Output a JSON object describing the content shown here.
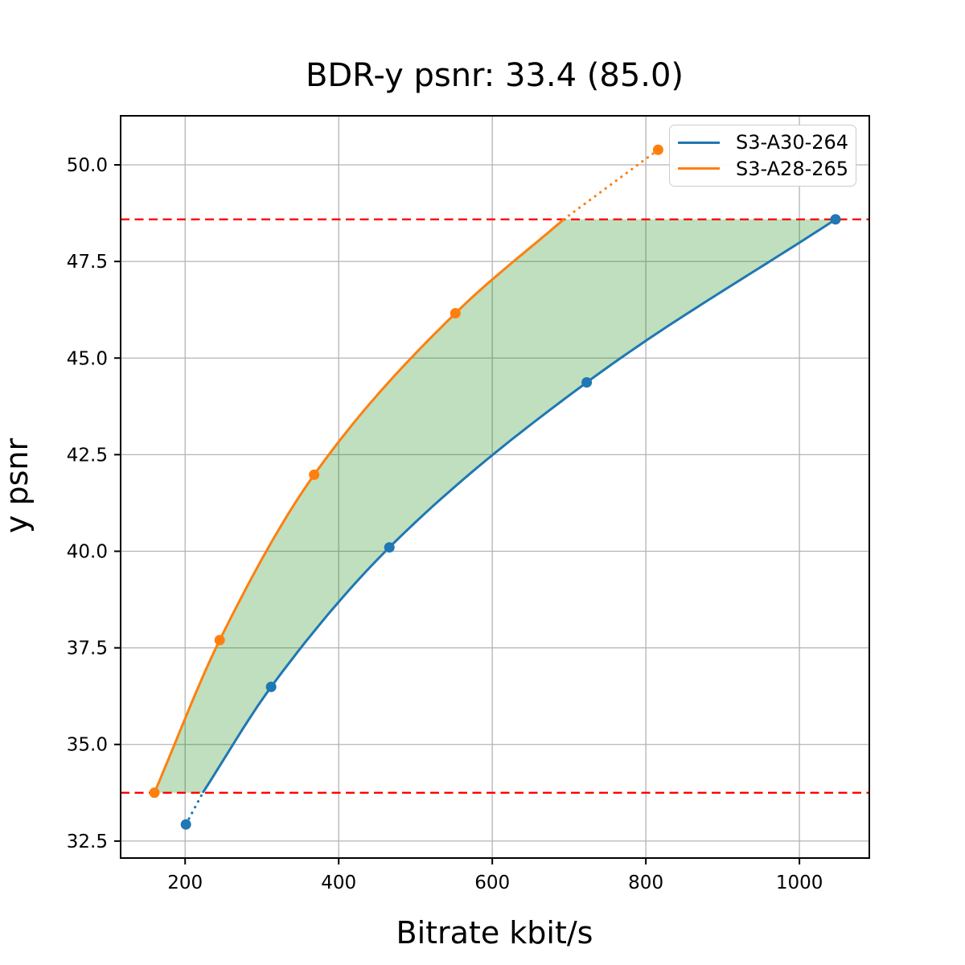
{
  "title": "BDR-y psnr: 33.4 (85.0)",
  "legend": {
    "items": [
      {
        "label": "S3-A30-264",
        "color": "#1f77b4"
      },
      {
        "label": "S3-A28-265",
        "color": "#ff7f0e"
      }
    ]
  },
  "chart_data": {
    "type": "line",
    "title": "BDR-y psnr: 33.4 (85.0)",
    "xlabel": "Bitrate kbit/s",
    "ylabel": "y psnr",
    "xlim": [
      116,
      1091
    ],
    "ylim": [
      32.06,
      51.27
    ],
    "x_ticks": [
      200,
      400,
      600,
      800,
      1000
    ],
    "y_ticks": [
      32.5,
      35.0,
      37.5,
      40.0,
      42.5,
      45.0,
      47.5,
      50.0
    ],
    "grid": true,
    "grid_color": "#b4b4b4",
    "legend_position": "upper right",
    "series": [
      {
        "name": "S3-A30-264",
        "color": "#1f77b4",
        "points": [
          [
            201,
            32.93
          ],
          [
            312,
            36.49
          ],
          [
            466,
            40.1
          ],
          [
            723,
            44.37
          ],
          [
            1047,
            48.59
          ]
        ],
        "solid_points": [
          [
            223,
            33.75
          ],
          [
            312,
            36.49
          ],
          [
            466,
            40.1
          ],
          [
            723,
            44.37
          ],
          [
            1047,
            48.59
          ]
        ],
        "dotted_points": [
          [
            201,
            32.93
          ],
          [
            223,
            33.75
          ]
        ]
      },
      {
        "name": "S3-A28-265",
        "color": "#ff7f0e",
        "points": [
          [
            160,
            33.75
          ],
          [
            245,
            37.7
          ],
          [
            368,
            41.98
          ],
          [
            552,
            46.16
          ],
          [
            816,
            50.39
          ]
        ],
        "solid_points": [
          [
            160,
            33.75
          ],
          [
            245,
            37.7
          ],
          [
            368,
            41.98
          ],
          [
            552,
            46.16
          ],
          [
            693,
            48.59
          ]
        ],
        "dotted_points": [
          [
            693,
            48.59
          ],
          [
            816,
            50.39
          ]
        ]
      }
    ],
    "hlines": {
      "values": [
        33.75,
        48.59
      ],
      "color": "#ff0000",
      "style": "dashed"
    },
    "fill_between": {
      "color": "#008000",
      "opacity": 0.25,
      "x_range": [
        160,
        1047
      ],
      "y_range": [
        33.75,
        48.59
      ]
    }
  }
}
